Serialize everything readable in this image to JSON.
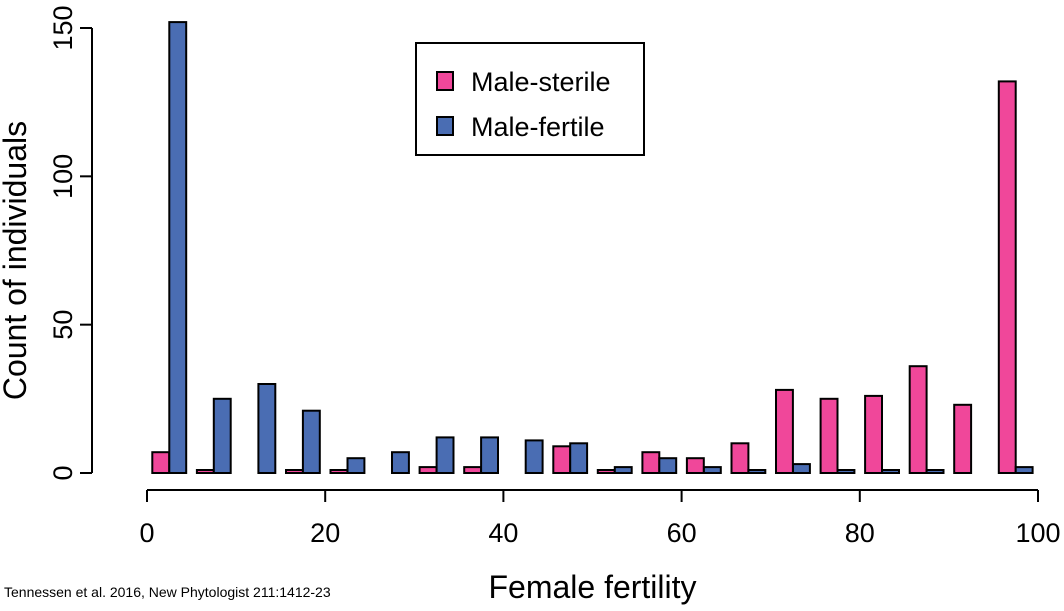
{
  "chart_data": {
    "type": "bar",
    "xlabel": "Female fertility",
    "ylabel": "Count of individuals",
    "xlim": [
      0,
      100
    ],
    "ylim": [
      0,
      150
    ],
    "x_ticks": [
      0,
      20,
      40,
      60,
      80,
      100
    ],
    "y_ticks": [
      0,
      50,
      100,
      150
    ],
    "bin_width": 5,
    "categories": [
      "0-5",
      "5-10",
      "10-15",
      "15-20",
      "20-25",
      "25-30",
      "30-35",
      "35-40",
      "40-45",
      "45-50",
      "50-55",
      "55-60",
      "60-65",
      "65-70",
      "70-75",
      "75-80",
      "80-85",
      "85-90",
      "90-95",
      "95-100"
    ],
    "legend_position": "top-center",
    "grid": false,
    "series": [
      {
        "name": "Male-sterile",
        "color": "#f0479a",
        "values": [
          7,
          1,
          0,
          1,
          1,
          0,
          2,
          2,
          0,
          9,
          1,
          7,
          5,
          10,
          28,
          25,
          26,
          36,
          23,
          132
        ]
      },
      {
        "name": "Male-fertile",
        "color": "#4a6db3",
        "values": [
          152,
          25,
          30,
          21,
          5,
          7,
          12,
          12,
          11,
          10,
          2,
          5,
          2,
          1,
          3,
          1,
          1,
          1,
          0,
          2
        ]
      }
    ]
  },
  "citation": "Tennessen et al. 2016, New Phytologist 211:1412-23"
}
